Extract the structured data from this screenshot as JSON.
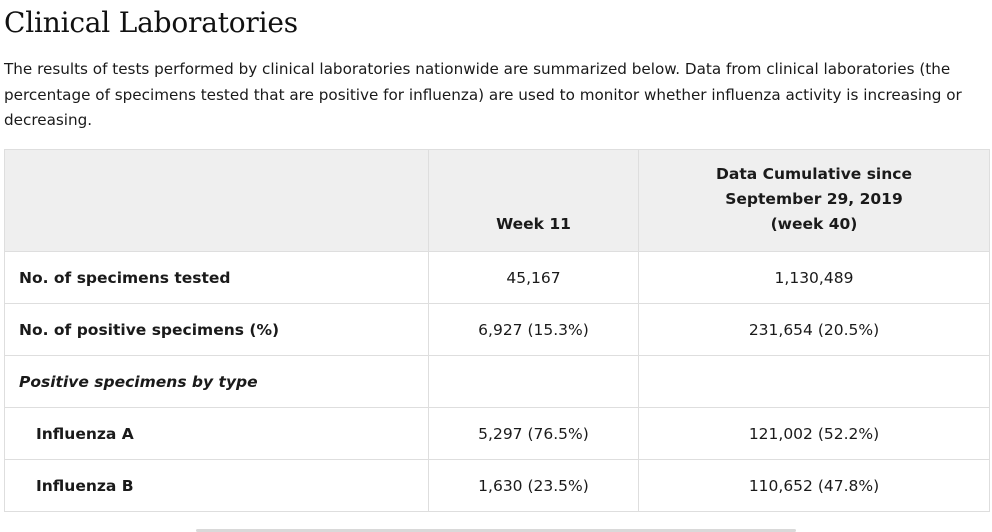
{
  "page": {
    "title": "Clinical Laboratories",
    "intro": "The results of tests performed by clinical laboratories nationwide are summarized below. Data from clinical laboratories (the percentage of specimens tested that are positive for influenza) are used to monitor whether influenza activity is increasing or decreasing."
  },
  "table": {
    "headers": {
      "col1": "",
      "col2": "Week 11",
      "col3_line1": "Data Cumulative since",
      "col3_line2": "September 29, 2019",
      "col3_line3": "(week 40)"
    },
    "rows": [
      {
        "label": "No. of specimens tested",
        "week": "45,167",
        "cumulative": "1,130,489"
      },
      {
        "label": "No. of positive specimens (%)",
        "week": "6,927 (15.3%)",
        "cumulative": "231,654 (20.5%)"
      },
      {
        "label": "Positive specimens by type",
        "week": "",
        "cumulative": ""
      },
      {
        "label": "Influenza A",
        "week": "5,297 (76.5%)",
        "cumulative": "121,002 (52.2%)"
      },
      {
        "label": "Influenza B",
        "week": "1,630 (23.5%)",
        "cumulative": "110,652 (47.8%)"
      }
    ]
  }
}
